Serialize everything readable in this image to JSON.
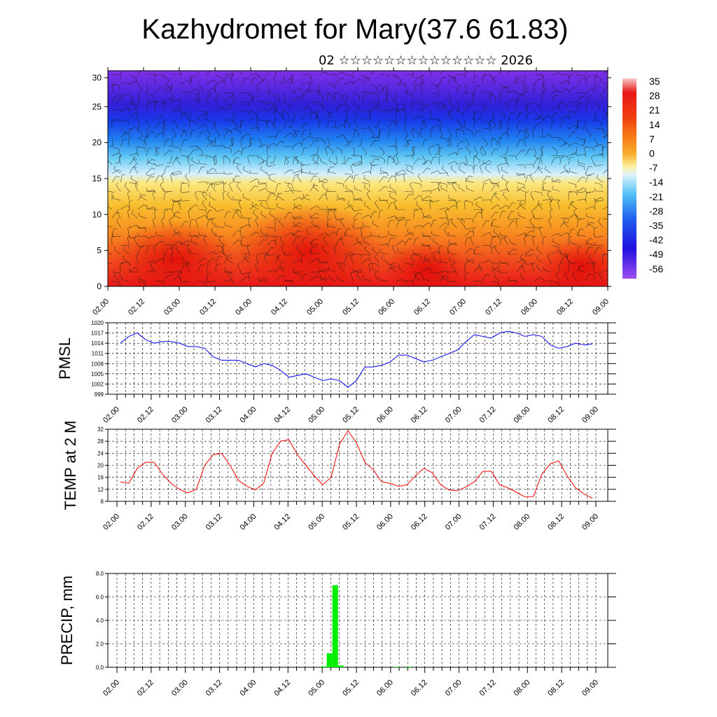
{
  "title": "Kazhydromet for Mary(37.6 61.83)",
  "subtitle": "02 ☆☆☆☆☆☆☆☆☆☆☆☆☆☆ 2026",
  "time_ticks": [
    "02.00",
    "02.12",
    "03.00",
    "03.12",
    "04.00",
    "04.12",
    "05.00",
    "05.12",
    "06.00",
    "06.12",
    "07.00",
    "07.12",
    "08.00",
    "08.12",
    "09.00"
  ],
  "chart_data": [
    {
      "type": "heatmap",
      "name": "temperature-cross-section",
      "ylabel": "",
      "ylim": [
        0,
        30
      ],
      "yticks": [
        "0",
        "5",
        "10",
        "15",
        "20",
        "25",
        "30"
      ],
      "colorbar_labels": [
        "35",
        "28",
        "21",
        "14",
        "7",
        "0",
        "-7",
        "-14",
        "-21",
        "-28",
        "-35",
        "-42",
        "-49",
        "-56"
      ],
      "colors": {
        "hot": "#e8181a",
        "warm": "#f8a21c",
        "mild": "#fce678",
        "cool": "#7cd4f4",
        "cold": "#1a5cf0",
        "deep": "#7028e0"
      }
    },
    {
      "type": "line",
      "name": "PMSL",
      "ylabel": "PMSL",
      "ylim": [
        999,
        1020
      ],
      "yticks": [
        "1020",
        "1017",
        "1014",
        "1011",
        "1008",
        "1005",
        "1002",
        "999"
      ],
      "color": "#0000ff",
      "values": [
        1014,
        1016,
        1017,
        1015,
        1014,
        1014.5,
        1014.5,
        1014,
        1013,
        1013,
        1012.5,
        1010,
        1009,
        1009,
        1009,
        1008,
        1007,
        1008,
        1007.5,
        1006,
        1004,
        1004.5,
        1005,
        1004,
        1003,
        1003.5,
        1003,
        1001,
        1003,
        1007,
        1007,
        1007.5,
        1008.5,
        1010.5,
        1010.5,
        1009.5,
        1008.5,
        1009,
        1010,
        1011,
        1012,
        1014.5,
        1016.5,
        1016,
        1015.5,
        1017,
        1017.5,
        1017,
        1016,
        1016.5,
        1016,
        1013.5,
        1012.5,
        1013,
        1014,
        1013.5,
        1013.8
      ]
    },
    {
      "type": "line",
      "name": "TEMP at 2 M",
      "ylabel": "TEMP at 2 M",
      "ylim": [
        8,
        32
      ],
      "yticks": [
        "32",
        "28",
        "24",
        "20",
        "16",
        "12",
        "8"
      ],
      "color": "#ff0000",
      "values": [
        14.5,
        14,
        19,
        21,
        21,
        17,
        14,
        12,
        10.8,
        12,
        20,
        23.5,
        24,
        20,
        15,
        13,
        11.8,
        14,
        24,
        28,
        28.5,
        23.5,
        20,
        16.5,
        13.5,
        16,
        27,
        31.5,
        27.5,
        21,
        18.5,
        14.5,
        14,
        13,
        13.5,
        16.5,
        19,
        17.5,
        13.5,
        11.8,
        11.5,
        12.8,
        14.5,
        18,
        18,
        13.5,
        12.5,
        11,
        9.5,
        9.6,
        17,
        20.5,
        21.5,
        16.5,
        12.5,
        10.5,
        9
      ]
    },
    {
      "type": "bar",
      "name": "PRECIP, mm",
      "ylabel": "PRECIP, mm",
      "ylim": [
        0,
        8
      ],
      "yticks": [
        "8.0",
        "6.0",
        "4.0",
        "2.0",
        "0.0"
      ],
      "color": "#00ee00",
      "values": [
        0,
        0,
        0,
        0,
        0,
        0,
        0,
        0,
        0,
        0,
        0,
        0,
        0,
        0,
        0,
        0,
        0,
        0,
        0,
        0,
        0,
        0,
        0,
        0,
        0,
        0,
        0,
        0,
        0,
        0,
        0,
        0,
        0,
        0,
        0,
        0.08,
        1.2,
        7.0,
        0.15,
        0,
        0,
        0,
        0,
        0,
        0,
        0,
        0,
        0,
        0.04,
        0,
        0.05,
        0,
        0,
        0,
        0,
        0,
        0,
        0,
        0,
        0,
        0,
        0,
        0,
        0,
        0,
        0,
        0,
        0,
        0,
        0,
        0,
        0,
        0,
        0,
        0,
        0,
        0,
        0,
        0,
        0,
        0,
        0,
        0,
        0,
        0,
        0
      ]
    }
  ]
}
